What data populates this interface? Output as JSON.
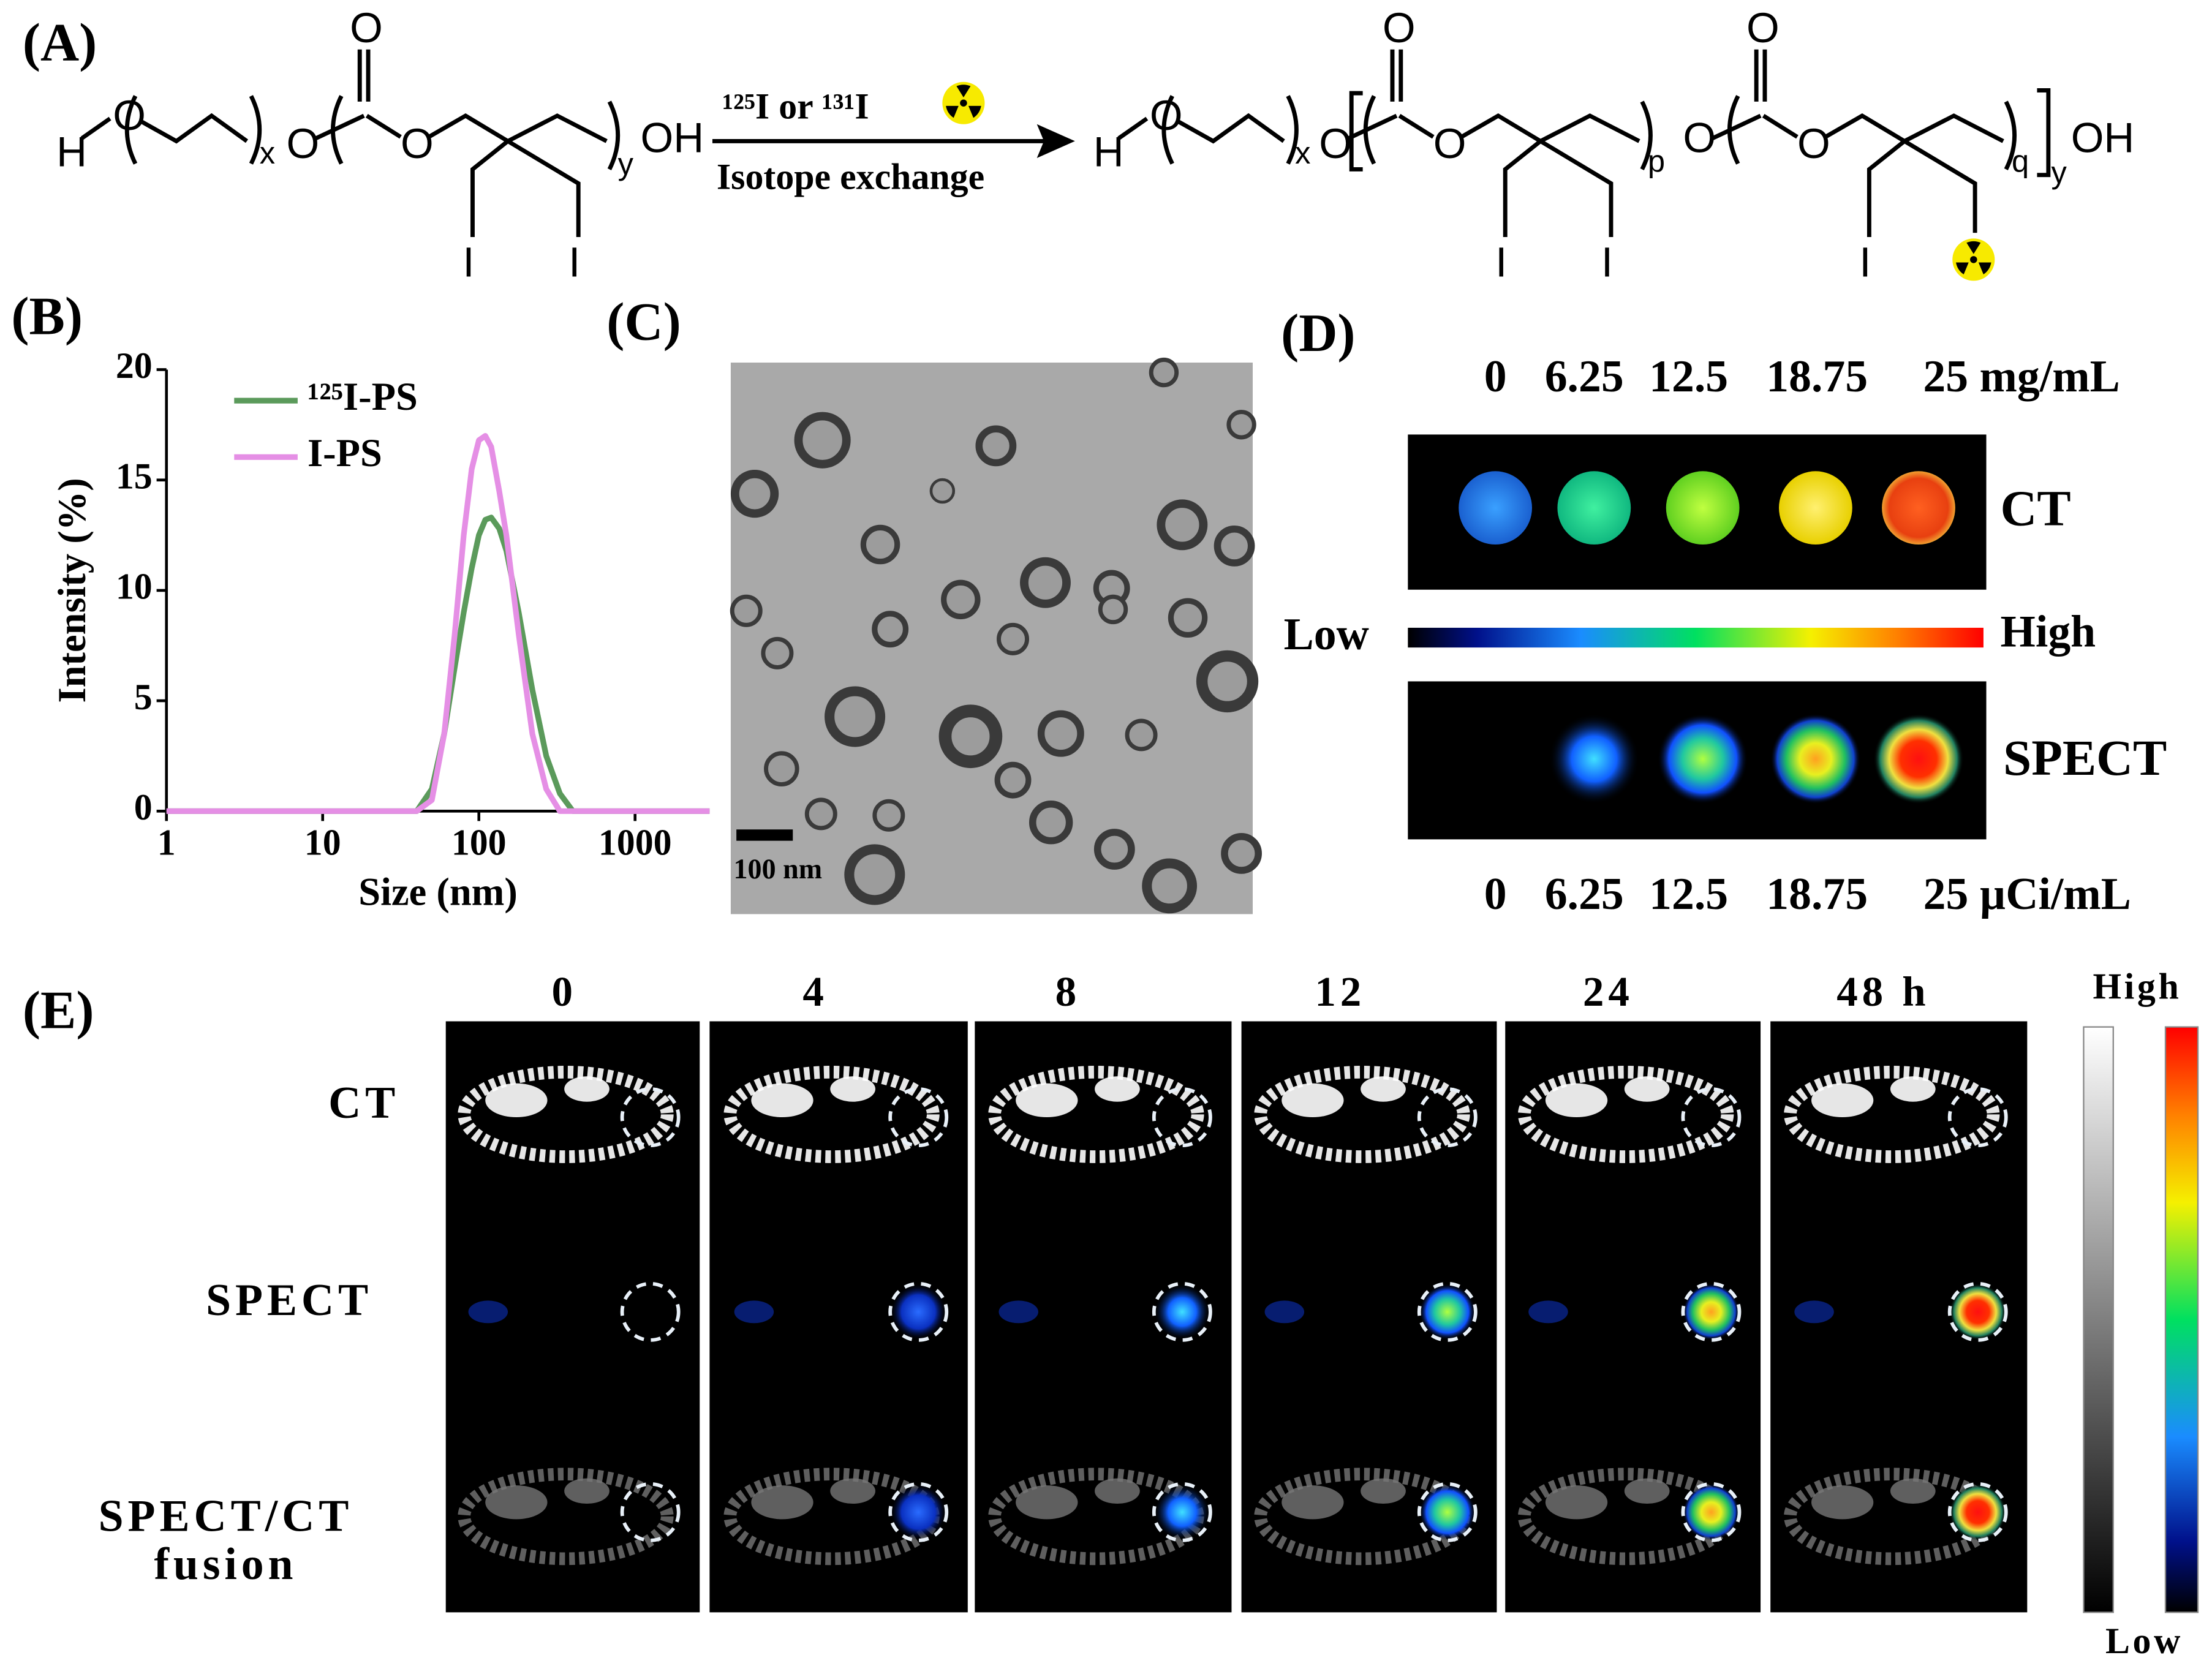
{
  "panel_labels": [
    "(A)",
    "(B)",
    "(C)",
    "(D)",
    "(E)"
  ],
  "panel_a": {
    "reagent": "¹²⁵I or ¹³¹I",
    "method": "Isotope exchange",
    "reactant_atoms": [
      "H",
      "O",
      "x",
      "O",
      "O",
      "O",
      "y",
      "OH",
      "I",
      "I"
    ],
    "product_atoms": [
      "H",
      "O",
      "x",
      "O",
      "O",
      "O",
      "p",
      "O",
      "O",
      "O",
      "q",
      "y",
      "OH",
      "I",
      "I",
      "I"
    ]
  },
  "chart_data": {
    "type": "line",
    "x_label": "Size (nm)",
    "y_label": "Intensity (%)",
    "log_x": true,
    "legend_position": "upper left",
    "x": [
      1,
      40,
      50,
      60,
      70,
      80,
      90,
      100,
      110,
      120,
      135,
      150,
      180,
      220,
      270,
      330,
      400,
      3000
    ],
    "series": [
      {
        "name": "¹²⁵I-PS",
        "color": "#5b9a5b",
        "values": [
          0,
          0,
          1,
          3.5,
          6.5,
          9,
          11,
          12.5,
          13.2,
          13.3,
          12.8,
          11.8,
          9,
          5.5,
          2.5,
          0.8,
          0,
          0
        ]
      },
      {
        "name": "I-PS",
        "color": "#e58fe5",
        "values": [
          0,
          0,
          0.5,
          3.5,
          8,
          12.5,
          15.5,
          16.8,
          17,
          16.5,
          14.5,
          12.5,
          8,
          3.5,
          1,
          0,
          0,
          0
        ]
      }
    ],
    "xlim": [
      1,
      3000
    ],
    "xticks": [
      1,
      10,
      100,
      1000
    ],
    "ylim": [
      0,
      20
    ],
    "yticks": [
      0,
      5,
      10,
      15,
      20
    ]
  },
  "panel_c": {
    "scale_bar": "100 nm"
  },
  "panel_d": {
    "ct_concentrations": [
      "0",
      "6.25",
      "12.5",
      "18.75",
      "25 mg/mL"
    ],
    "ct_label": "CT",
    "scale_low": "Low",
    "scale_high": "High",
    "spect_label": "SPECT",
    "spect_activities": [
      "0",
      "6.25",
      "12.5",
      "18.75",
      "25 µCi/mL"
    ]
  },
  "panel_e": {
    "time_points": [
      "0",
      "4",
      "8",
      "12",
      "24",
      "48 h"
    ],
    "row_labels": [
      "CT",
      "SPECT",
      "SPECT/CT",
      "fusion"
    ],
    "scale_high": "High",
    "scale_low": "Low"
  }
}
